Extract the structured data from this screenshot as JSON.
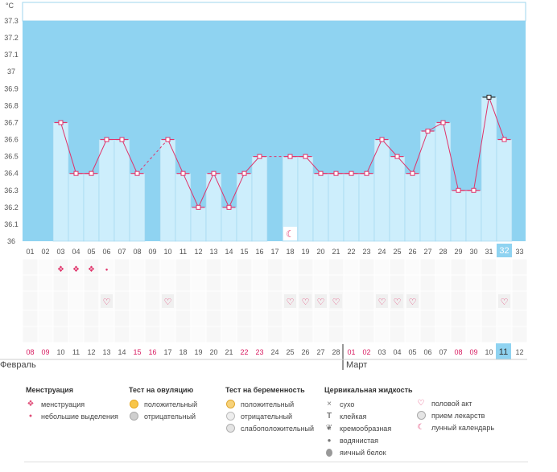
{
  "chart_data": {
    "type": "bar",
    "unit_label": "°C",
    "ylim": [
      36.0,
      37.3
    ],
    "y_ticks": [
      "36",
      "36.1",
      "36.2",
      "36.3",
      "36.4",
      "36.5",
      "36.6",
      "36.7",
      "36.8",
      "36.9",
      "37",
      "37.1",
      "37.2",
      "37.3"
    ],
    "cycle_days": [
      "01",
      "02",
      "03",
      "04",
      "05",
      "06",
      "07",
      "08",
      "09",
      "10",
      "11",
      "12",
      "13",
      "14",
      "15",
      "16",
      "17",
      "18",
      "19",
      "20",
      "21",
      "22",
      "23",
      "24",
      "25",
      "26",
      "27",
      "28",
      "29",
      "30",
      "31",
      "32",
      "33"
    ],
    "temperatures": [
      null,
      null,
      36.7,
      36.4,
      36.4,
      36.6,
      36.6,
      36.4,
      null,
      36.6,
      36.4,
      36.2,
      36.4,
      36.2,
      36.4,
      36.5,
      null,
      36.5,
      36.5,
      36.4,
      36.4,
      36.4,
      36.4,
      36.6,
      36.5,
      36.4,
      36.65,
      36.7,
      36.3,
      36.3,
      36.85,
      36.6,
      null
    ],
    "dashed_gaps": [
      [
        8,
        10
      ],
      [
        16,
        18
      ]
    ],
    "max_marker_day": "31",
    "current_day": "32",
    "moon_day": "18",
    "menstruation_days": [
      "03",
      "04",
      "05"
    ],
    "light_bleeding_days": [
      "06"
    ],
    "intercourse_days": [
      "06",
      "10",
      "18",
      "19",
      "20",
      "21",
      "24",
      "25",
      "26",
      "32"
    ],
    "dates": [
      "08",
      "09",
      "10",
      "11",
      "12",
      "13",
      "14",
      "15",
      "16",
      "17",
      "18",
      "19",
      "20",
      "21",
      "22",
      "23",
      "24",
      "25",
      "26",
      "27",
      "28",
      "01",
      "02",
      "03",
      "04",
      "05",
      "06",
      "07",
      "08",
      "09",
      "10",
      "11",
      "12"
    ],
    "weekend_dates": [
      0,
      1,
      7,
      8,
      14,
      15,
      21,
      22,
      28,
      29
    ],
    "current_date_index": 31,
    "month_labels": {
      "first": "Февраль",
      "second": "Март"
    },
    "month_split_after_index": 20
  },
  "colors": {
    "sky": "#8fd3f1",
    "bar": "#cdeefc",
    "bar_border": "#9fd6ee",
    "line": "#e0336a",
    "weekend": "#d81b60",
    "current": "#8fd3f1"
  },
  "legend": {
    "menstruation": {
      "title": "Менструация",
      "items": [
        "менструация",
        "небольшие выделения"
      ]
    },
    "ovulation": {
      "title": "Тест на овуляцию",
      "items": [
        "положительный",
        "отрицательный"
      ]
    },
    "pregnancy": {
      "title": "Тест на беременность",
      "items": [
        "положительный",
        "отрицательный",
        "слабоположительный"
      ]
    },
    "cervical": {
      "title": "Цервикальная жидкость",
      "items": [
        "сухо",
        "клейкая",
        "кремообразная",
        "водянистая",
        "яичный белок"
      ]
    },
    "other": {
      "items": [
        "половой акт",
        "прием лекарств",
        "лунный календарь"
      ]
    }
  },
  "icons": {
    "menstruation": "drop-icon",
    "light_bleeding": "small-drop-icon",
    "intercourse": "heart-icon",
    "moon": "moon-icon"
  }
}
